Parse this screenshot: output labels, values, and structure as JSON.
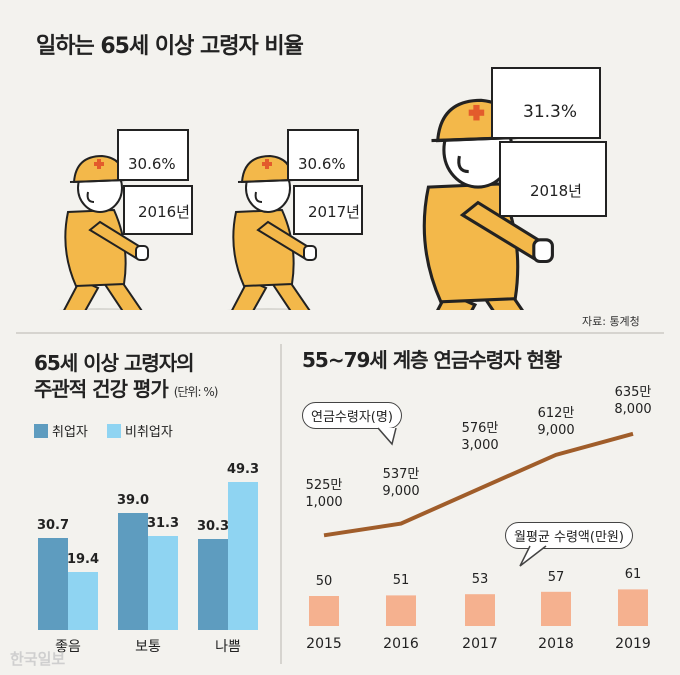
{
  "title": "일하는 65세 이상 고령자 비율",
  "source": "자료: 통계청",
  "watermark": "한국일보",
  "colors": {
    "worker_body": "#f3b84a",
    "employed": "#5e9cbf",
    "unemployed": "#8fd4f2",
    "line": "#a05d2a",
    "pension_bar": "#f5b18f"
  },
  "workers": [
    {
      "year": "2016년",
      "rate": "30.6%"
    },
    {
      "year": "2017년",
      "rate": "30.6%"
    },
    {
      "year": "2018년",
      "rate": "31.3%"
    }
  ],
  "health": {
    "title_line1": "65세 이상 고령자의",
    "title_line2": "주관적 건강 평가",
    "unit": "(단위: %)",
    "legend": [
      "취업자",
      "비취업자"
    ]
  },
  "pension": {
    "title": "55~79세 계층 연금수령자 현황",
    "callout_recipients": "연금수령자(명)",
    "callout_amount": "월평균 수령액(만원)"
  },
  "chart_data": [
    {
      "type": "bar",
      "title": "65세 이상 고령자의 주관적 건강 평가",
      "unit": "%",
      "categories": [
        "좋음",
        "보통",
        "나쁨"
      ],
      "series": [
        {
          "name": "취업자",
          "values": [
            30.7,
            39.0,
            30.3
          ],
          "labels": [
            "30.7",
            "39.0",
            "30.3"
          ]
        },
        {
          "name": "비취업자",
          "values": [
            19.4,
            31.3,
            49.3
          ],
          "labels": [
            "19.4",
            "31.3",
            "49.3"
          ]
        }
      ],
      "ylim": [
        0,
        50
      ]
    },
    {
      "type": "line",
      "title": "55~79세 계층 연금수령자 현황",
      "x": [
        "2015",
        "2016",
        "2017",
        "2018",
        "2019"
      ],
      "series": [
        {
          "name": "연금수령자(명)",
          "values": [
            5251000,
            5379000,
            5763000,
            6129000,
            6358000
          ],
          "labels": [
            [
              "525만",
              "1,000"
            ],
            [
              "537만",
              "9,000"
            ],
            [
              "576만",
              "3,000"
            ],
            [
              "612만",
              "9,000"
            ],
            [
              "635만",
              "8,000"
            ]
          ]
        }
      ]
    },
    {
      "type": "bar",
      "title": "월평균 수령액(만원)",
      "x": [
        "2015",
        "2016",
        "2017",
        "2018",
        "2019"
      ],
      "values": [
        50,
        51,
        53,
        57,
        61
      ],
      "labels": [
        "50",
        "51",
        "53",
        "57",
        "61"
      ]
    }
  ]
}
